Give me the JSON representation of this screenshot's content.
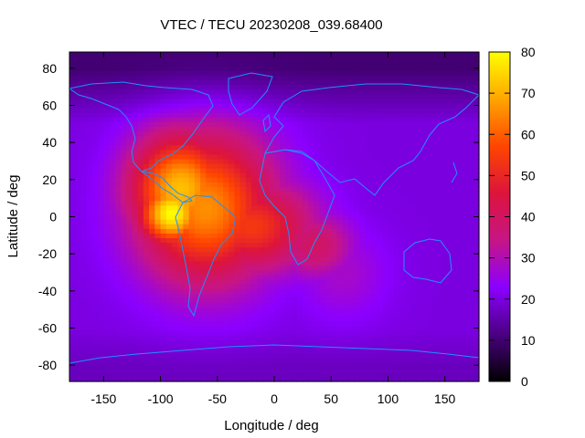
{
  "chart_data": {
    "type": "heatmap",
    "title": "VTEC / TECU 20230208_039.68400",
    "xlabel": "Longitude / deg",
    "ylabel": "Latitude / deg",
    "xlim": [
      -180,
      180
    ],
    "ylim": [
      -88.75,
      88.75
    ],
    "x_ticks": [
      "-150",
      "-100",
      "-50",
      "0",
      "50",
      "100",
      "150"
    ],
    "y_ticks": [
      "80",
      "60",
      "40",
      "20",
      "0",
      "-20",
      "-40",
      "-60",
      "-80"
    ],
    "colorbar": {
      "range": [
        0,
        80
      ],
      "ticks": [
        "80",
        "70",
        "60",
        "50",
        "40",
        "30",
        "20",
        "10",
        "0"
      ],
      "colormap": [
        "#000000",
        "#4b0082",
        "#8b00ff",
        "#c71585",
        "#dc143c",
        "#ff4500",
        "#ffa500",
        "#ffff00"
      ]
    },
    "grid": false,
    "coastline_color": "#1e90ff",
    "peak": {
      "lon": -90,
      "lat": 0,
      "value": 80
    },
    "features": [
      {
        "lon": -90,
        "lat": 2,
        "value": 80,
        "sx": 30,
        "sy": 18
      },
      {
        "lon": -82,
        "lat": 15,
        "value": 72,
        "sx": 45,
        "sy": 30
      },
      {
        "lon": -60,
        "lat": 5,
        "value": 66,
        "sx": 60,
        "sy": 40
      },
      {
        "lon": -20,
        "lat": -5,
        "value": 54,
        "sx": 55,
        "sy": 25
      },
      {
        "lon": 35,
        "lat": -15,
        "value": 40,
        "sx": 35,
        "sy": 18
      },
      {
        "lon": 60,
        "lat": -30,
        "value": 28,
        "sx": 40,
        "sy": 25
      }
    ],
    "background_value": 20,
    "polar_values": {
      "north": 10,
      "south": 17
    }
  }
}
